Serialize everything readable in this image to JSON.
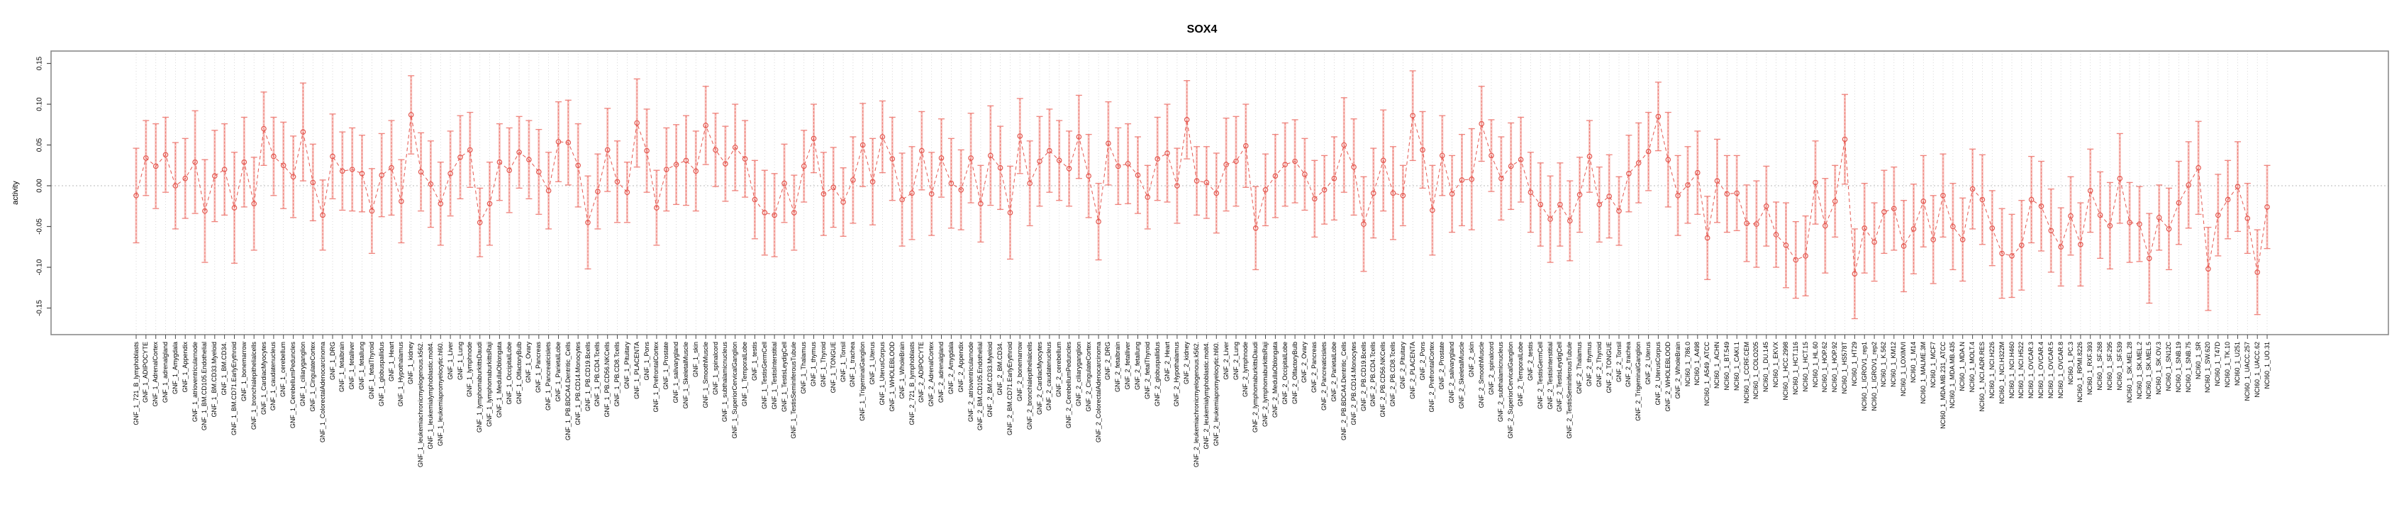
{
  "chart_data": {
    "type": "line",
    "subtype": "points-with-error-bars",
    "title": "SOX4",
    "xlabel": "",
    "ylabel": "activity",
    "ylim": [
      -0.183,
      0.165
    ],
    "yticks": [
      0.15,
      0.1,
      0.05,
      0.0,
      -0.05,
      -0.1,
      -0.15
    ],
    "grid": "vertical-dotted-per-category, dotted-zero-line",
    "legend": "none",
    "colors": {
      "point": "#e4574f",
      "segment_line": "#e4574f",
      "error_bar": "#ef837c",
      "error_bar_light": "#f7c6c2",
      "gridline": "#cfcfcf",
      "zero_line": "#b8b8b8",
      "box": "#8a8a8a"
    },
    "categories": [
      "GNF_1_721_B_lymphoblasts",
      "GNF_1_ADIPOCYTE",
      "GNF_1_AdrenalCortex",
      "GNF_1_adrenalgland",
      "GNF_1_Amygdala",
      "GNF_1_Appendix",
      "GNF_1_atrioventricularnode",
      "GNF_1_BM.CD105.Endothelial",
      "GNF_1_BM.CD33.Myeloid",
      "GNF_1_BM.CD34.",
      "GNF_1_BM.CD71.EarlyErythroid",
      "GNF_1_bonemarrow",
      "GNF_1_bronchialepithelialcells",
      "GNF_1_CardiacMyocytes",
      "GNF_1_caudatenucleus",
      "GNF_1_cerebellum",
      "GNF_1_CerebellumPeduncles",
      "GNF_1_ciliaryganglion",
      "GNF_1_CingulateCortex",
      "GNF_1_ColorectalAdenocarcinoma",
      "GNF_1_DRG",
      "GNF_1_fetalbrain",
      "GNF_1_fetalliver",
      "GNF_1_fetallung",
      "GNF_1_fetalThyroid",
      "GNF_1_globuspallidus",
      "GNF_1_Heart",
      "GNF_1_Hypothalamus",
      "GNF_1_kidney",
      "GNF_1_leukemiachronicmyelogenous.k562.",
      "GNF_1_leukemialymphoblastic.molt4.",
      "GNF_1_leukemiapromyelocytic.hl60.",
      "GNF_1_Liver",
      "GNF_1_Lung",
      "GNF_1_lymphnode",
      "GNF_1_lymphomaburkittsDaudi",
      "GNF_1_lymphomaburkittsRaji",
      "GNF_1_MedullaOblongata",
      "GNF_1_OccipitalLobe",
      "GNF_1_OlfactoryBulb",
      "GNF_1_Ovary",
      "GNF_1_Pancreas",
      "GNF_1_Pancreaticislets",
      "GNF_1_ParietalLobe",
      "GNF_1_PB.BDCA4.Dentritic_Cells",
      "GNF_1_PB.CD14.Monocytes",
      "GNF_1_PB.CD19.Bcells",
      "GNF_1_PB.CD4.Tcells",
      "GNF_1_PB.CD56.NKCells",
      "GNF_1_PB.CD8.Tcells",
      "GNF_1_Pituitary",
      "GNF_1_PLACENTA",
      "GNF_1_Pons",
      "GNF_1_PrefrontalCortex",
      "GNF_1_Prostate",
      "GNF_1_salivarygland",
      "GNF_1_SkeletalMuscle",
      "GNF_1_skin",
      "GNF_1_SmoothMuscle",
      "GNF_1_spinalcord",
      "GNF_1_subthalamicnucleus",
      "GNF_1_SuperiorCervicalGanglion",
      "GNF_1_TemporalLobe",
      "GNF_1_testis",
      "GNF_1_TestisGermCell",
      "GNF_1_TestisInterstitial",
      "GNF_1_TestisLeydigCell",
      "GNF_1_TestisSeminiferousTubule",
      "GNF_1_Thalamus",
      "GNF_1_thymus",
      "GNF_1_Thyroid",
      "GNF_1_TONGUE",
      "GNF_1_Tonsil",
      "GNF_1_trachea",
      "GNF_1_TrigeminalGanglion",
      "GNF_1_Uterus",
      "GNF_1_UterusCorpus",
      "GNF_1_WHOLEBLOOD",
      "GNF_1_WholeBrain",
      "GNF_2_721_B_lymphoblasts",
      "GNF_2_ADIPOCYTE",
      "GNF_2_AdrenalCortex",
      "GNF_2_adrenalgland",
      "GNF_2_Amygdala",
      "GNF_2_Appendix",
      "GNF_2_atrioventricularnode",
      "GNF_2_BM.CD105.Endothelial",
      "GNF_2_BM.CD33.Myeloid",
      "GNF_2_BM.CD34.",
      "GNF_2_BM.CD71.EarlyErythroid",
      "GNF_2_bonemarrow",
      "GNF_2_bronchialepithelialcells",
      "GNF_2_CardiacMyocytes",
      "GNF_2_caudatenucleus",
      "GNF_2_cerebellum",
      "GNF_2_CerebellumPeduncles",
      "GNF_2_ciliaryganglion",
      "GNF_2_CingulateCortex",
      "GNF_2_ColorectalAdenocarcinoma",
      "GNF_2_DRG",
      "GNF_2_fetalbrain",
      "GNF_2_fetalliver",
      "GNF_2_fetallung",
      "GNF_2_fetalThyroid",
      "GNF_2_globuspallidus",
      "GNF_2_Heart",
      "GNF_2_Hypothalamus",
      "GNF_2_kidney",
      "GNF_2_leukemiachronicmyelogenous.k562.",
      "GNF_2_leukemialymphoblastic.molt4.",
      "GNF_2_leukemiapromyelocytic.hl60.",
      "GNF_2_Liver",
      "GNF_2_Lung",
      "GNF_2_lymphnode",
      "GNF_2_lymphomaburkittsDaudi",
      "GNF_2_lymphomaburkittsRaji",
      "GNF_2_MedullaOblongata",
      "GNF_2_OccipitalLobe",
      "GNF_2_OlfactoryBulb",
      "GNF_2_Ovary",
      "GNF_2_Pancreas",
      "GNF_2_Pancreaticislets",
      "GNF_2_ParietalLobe",
      "GNF_2_PB.BDCA4.Dentritic_Cells",
      "GNF_2_PB.CD14.Monocytes",
      "GNF_2_PB.CD19.Bcells",
      "GNF_2_PB.CD4.Tcells",
      "GNF_2_PB.CD56.NKCells",
      "GNF_2_PB.CD8.Tcells",
      "GNF_2_Pituitary",
      "GNF_2_PLACENTA",
      "GNF_2_Pons",
      "GNF_2_PrefrontalCortex",
      "GNF_2_Prostate",
      "GNF_2_salivarygland",
      "GNF_2_SkeletalMuscle",
      "GNF_2_skin",
      "GNF_2_SmoothMuscle",
      "GNF_2_spinalcord",
      "GNF_2_subthalamicnucleus",
      "GNF_2_SuperiorCervicalGanglion",
      "GNF_2_TemporalLobe",
      "GNF_2_testis",
      "GNF_2_TestisGermCell",
      "GNF_2_TestisInterstitial",
      "GNF_2_TestisLeydigCell",
      "GNF_2_TestisSeminiferousTubule",
      "GNF_2_Thalamus",
      "GNF_2_thymus",
      "GNF_2_Thyroid",
      "GNF_2_TONGUE",
      "GNF_2_Tonsil",
      "GNF_2_trachea",
      "GNF_2_TrigeminalGanglion",
      "GNF_2_Uterus",
      "GNF_2_UterusCorpus",
      "GNF_2_WHOLEBLOOD",
      "GNF_2_WholeBrain",
      "NCI60_1_786.0",
      "NCI60_1_A498",
      "NCI60_1_A549_ATCC",
      "NCI60_1_ACHN",
      "NCI60_1_BT.549",
      "NCI60_1_CAKI.1",
      "NCI60_1_CCRF.CEM",
      "NCI60_1_COLO205",
      "NCI60_1_DU.145",
      "NCI60_1_EKVX",
      "NCI60_1_HCC.2998",
      "NCI60_1_HCT.116",
      "NCI60_1_HCT.15",
      "NCI60_1_HL.60",
      "NCI60_1_HOP.62",
      "NCI60_1_HOP.92",
      "NCI60_1_HS578T",
      "NCI60_1_HT29",
      "NCI60_1_IGROV1_rep1",
      "NCI60_1_IGROV1_rep2",
      "NCI60_1_K.562",
      "NCI60_1_KM12",
      "NCI60_1_LOXIMVI",
      "NCI60_1_M14",
      "NCI60_1_MALME.3M",
      "NCI60_1_MCF7",
      "NCI60_1_MDA.MB.231_ATCC",
      "NCI60_1_MDA.MB.435",
      "NCI60_1_MDA.N",
      "NCI60_1_MOLT.4",
      "NCI60_1_NCI.ADR.RES",
      "NCI60_1_NCI.H226",
      "NCI60_1_NCI.H322M",
      "NCI60_1_NCI.H460",
      "NCI60_1_NCI.H522",
      "NCI60_1_OVCAR.3",
      "NCI60_1_OVCAR.4",
      "NCI60_1_OVCAR.5",
      "NCI60_1_OVCAR.8",
      "NCI60_1_PC.3",
      "NCI60_1_RPMI.8226",
      "NCI60_1_RXF.393",
      "NCI60_1_SF.268",
      "NCI60_1_SF.295",
      "NCI60_1_SF.539",
      "NCI60_1_SK.MEL.28",
      "NCI60_1_SK.MEL.2",
      "NCI60_1_SK.MEL.5",
      "NCI60_1_SK.OV.3",
      "NCI60_1_SN12C",
      "NCI60_1_SNB.19",
      "NCI60_1_SNB.75",
      "NCI60_1_SR",
      "NCI60_1_SW.620",
      "NCI60_1_T47D",
      "NCI60_1_TK.10",
      "NCI60_1_U251",
      "NCI60_1_UACC.257",
      "NCI60_1_UACC.62",
      "NCI60_1_UO.31"
    ],
    "series": [
      {
        "name": "activity",
        "values": [
          -0.012,
          0.034,
          0.024,
          0.038,
          0.0,
          0.009,
          0.029,
          -0.031,
          0.012,
          0.02,
          -0.027,
          0.029,
          -0.022,
          0.07,
          0.036,
          0.025,
          0.011,
          0.066,
          0.004,
          -0.036,
          0.036,
          0.018,
          0.02,
          0.015,
          -0.031,
          0.013,
          0.022,
          -0.019,
          0.087,
          0.017,
          0.002,
          -0.022,
          0.015,
          0.035,
          0.044,
          -0.045,
          -0.022,
          0.029,
          0.019,
          0.041,
          0.032,
          0.017,
          -0.006,
          0.054,
          0.053,
          0.025,
          -0.045,
          -0.007,
          0.044,
          0.005,
          -0.008,
          0.077,
          0.043,
          -0.027,
          0.02,
          0.026,
          0.031,
          0.018,
          0.074,
          0.044,
          0.027,
          0.047,
          0.033,
          -0.017,
          -0.033,
          -0.036,
          0.003,
          -0.033,
          0.024,
          0.058,
          -0.01,
          -0.002,
          -0.02,
          0.007,
          0.05,
          0.005,
          0.06,
          0.033,
          -0.017,
          -0.009,
          0.043,
          -0.01,
          0.034,
          0.003,
          -0.005,
          0.034,
          -0.022,
          0.037,
          0.022,
          -0.033,
          0.061,
          0.003,
          0.03,
          0.043,
          0.031,
          0.021,
          0.06,
          0.012,
          -0.044,
          0.052,
          0.024,
          0.027,
          0.013,
          -0.014,
          0.033,
          0.04,
          0.0,
          0.081,
          0.006,
          0.004,
          -0.009,
          0.026,
          0.03,
          0.049,
          -0.052,
          -0.005,
          0.012,
          0.026,
          0.03,
          0.014,
          -0.016,
          -0.005,
          0.009,
          0.05,
          0.023,
          -0.047,
          -0.009,
          0.031,
          -0.009,
          -0.012,
          0.086,
          0.044,
          -0.03,
          0.037,
          -0.01,
          0.007,
          0.008,
          0.076,
          0.037,
          0.009,
          0.024,
          0.032,
          -0.008,
          -0.023,
          -0.041,
          -0.023,
          -0.043,
          -0.011,
          0.036,
          -0.023,
          -0.013,
          -0.031,
          0.015,
          0.028,
          0.042,
          0.085,
          0.032,
          -0.012,
          0.001,
          0.016,
          -0.064,
          0.006,
          -0.01,
          -0.009,
          -0.046,
          -0.047,
          -0.025,
          -0.06,
          -0.073,
          -0.091,
          -0.086,
          0.004,
          -0.049,
          -0.019,
          0.057,
          -0.108,
          -0.052,
          -0.069,
          -0.032,
          -0.028,
          -0.074,
          -0.053,
          -0.019,
          -0.066,
          -0.012,
          -0.05,
          -0.066,
          -0.004,
          -0.017,
          -0.052,
          -0.083,
          -0.086,
          -0.073,
          -0.017,
          -0.025,
          -0.055,
          -0.075,
          -0.037,
          -0.072,
          -0.006,
          -0.036,
          -0.049,
          0.009,
          -0.045,
          -0.047,
          -0.089,
          -0.039,
          -0.053,
          -0.021,
          0.001,
          0.022,
          -0.102,
          -0.036,
          -0.017,
          -0.001,
          -0.04,
          -0.106,
          -0.026
        ],
        "errors": [
          0.058,
          0.046,
          0.052,
          0.046,
          0.053,
          0.049,
          0.063,
          0.063,
          0.056,
          0.056,
          0.068,
          0.055,
          0.057,
          0.045,
          0.048,
          0.053,
          0.05,
          0.06,
          0.047,
          0.043,
          0.052,
          0.048,
          0.051,
          0.047,
          0.052,
          0.051,
          0.058,
          0.051,
          0.048,
          0.048,
          0.053,
          0.051,
          0.052,
          0.051,
          0.046,
          0.042,
          0.051,
          0.047,
          0.052,
          0.044,
          0.048,
          0.052,
          0.047,
          0.049,
          0.052,
          0.051,
          0.057,
          0.046,
          0.051,
          0.05,
          0.037,
          0.054,
          0.051,
          0.046,
          0.051,
          0.049,
          0.055,
          0.049,
          0.048,
          0.045,
          0.046,
          0.053,
          0.047,
          0.048,
          0.052,
          0.051,
          0.048,
          0.046,
          0.044,
          0.042,
          0.051,
          0.049,
          0.042,
          0.053,
          0.051,
          0.053,
          0.044,
          0.051,
          0.057,
          0.057,
          0.048,
          0.051,
          0.048,
          0.055,
          0.049,
          0.055,
          0.047,
          0.061,
          0.051,
          0.057,
          0.046,
          0.052,
          0.055,
          0.051,
          0.049,
          0.046,
          0.051,
          0.051,
          0.047,
          0.051,
          0.047,
          0.049,
          0.047,
          0.039,
          0.051,
          0.06,
          0.046,
          0.048,
          0.042,
          0.044,
          0.049,
          0.057,
          0.055,
          0.051,
          0.051,
          0.044,
          0.051,
          0.051,
          0.051,
          0.044,
          0.047,
          0.042,
          0.051,
          0.058,
          0.059,
          0.058,
          0.055,
          0.062,
          0.057,
          0.037,
          0.055,
          0.047,
          0.055,
          0.049,
          0.047,
          0.056,
          0.062,
          0.046,
          0.044,
          0.051,
          0.053,
          0.052,
          0.049,
          0.051,
          0.053,
          0.051,
          0.049,
          0.046,
          0.044,
          0.046,
          0.051,
          0.042,
          0.047,
          0.049,
          0.048,
          0.042,
          0.058,
          0.049,
          0.047,
          0.051,
          0.051,
          0.051,
          0.047,
          0.046,
          0.047,
          0.053,
          0.049,
          0.04,
          0.052,
          0.047,
          0.049,
          0.051,
          0.058,
          0.044,
          0.055,
          0.055,
          0.055,
          0.048,
          0.051,
          0.051,
          0.056,
          0.055,
          0.056,
          0.054,
          0.051,
          0.053,
          0.051,
          0.049,
          0.055,
          0.046,
          0.055,
          0.051,
          0.055,
          0.053,
          0.055,
          0.051,
          0.048,
          0.048,
          0.051,
          0.051,
          0.053,
          0.053,
          0.055,
          0.049,
          0.046,
          0.055,
          0.04,
          0.05,
          0.051,
          0.053,
          0.057,
          0.051,
          0.05,
          0.048,
          0.055,
          0.043,
          0.052,
          0.051
        ]
      }
    ]
  }
}
